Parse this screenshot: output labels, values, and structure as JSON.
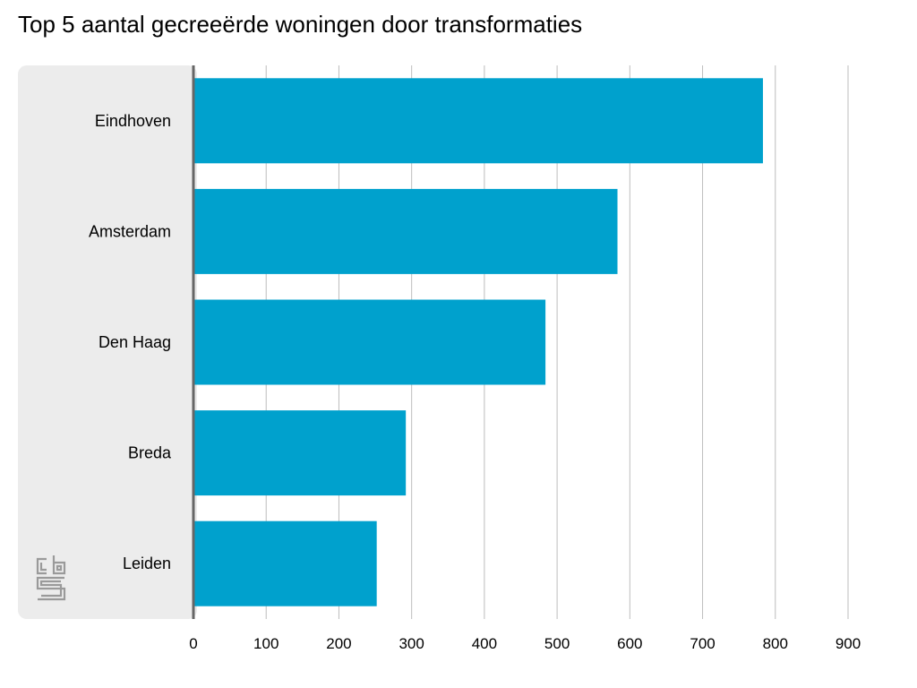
{
  "chart_data": {
    "type": "bar",
    "orientation": "horizontal",
    "title": "Top 5 aantal gecreeërde woningen door transformaties",
    "categories": [
      "Eindhoven",
      "Amsterdam",
      "Den Haag",
      "Breda",
      "Leiden"
    ],
    "values": [
      783,
      583,
      484,
      292,
      252
    ],
    "xlim": [
      0,
      900
    ],
    "xticks": [
      "0",
      "100",
      "200",
      "300",
      "400",
      "500",
      "600",
      "700",
      "800",
      "900"
    ],
    "grid": true,
    "bar_color": "#00a1cd",
    "label_panel_color": "#ececec",
    "logo": "cbs-logo"
  }
}
